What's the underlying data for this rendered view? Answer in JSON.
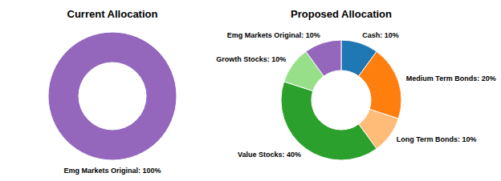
{
  "chart_data": [
    {
      "type": "donut",
      "title": "Current Allocation",
      "categories": [
        "Emg Markets Original"
      ],
      "values": [
        100
      ],
      "colors": [
        "#9467bd"
      ],
      "data_labels": true,
      "value_labels": [
        "Emg Markets Original: 100%"
      ]
    },
    {
      "type": "donut",
      "title": "Proposed Allocation",
      "categories": [
        "Cash",
        "Medium Term Bonds",
        "Long Term Bonds",
        "Value Stocks",
        "Growth Stocks",
        "Emg Markets Original"
      ],
      "values": [
        10,
        20,
        10,
        40,
        10,
        10
      ],
      "colors": [
        "#1f77b4",
        "#ff7f0e",
        "#ffbb78",
        "#2ca02c",
        "#98df8a",
        "#9467bd"
      ],
      "data_labels": true,
      "value_labels": [
        "Cash: 10%",
        "Medium Term Bonds: 20%",
        "Long Term Bonds: 10%",
        "Value Stocks: 40%",
        "Growth Stocks: 10%",
        "Emg Markets Original: 10%"
      ]
    }
  ]
}
